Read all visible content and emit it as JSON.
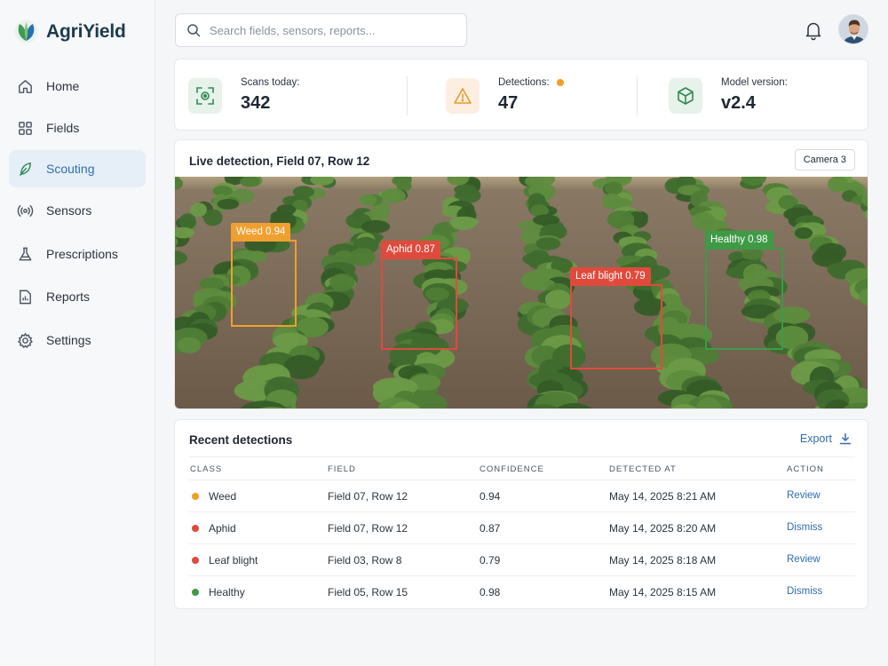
{
  "app": {
    "name": "AgriYield"
  },
  "sidebar": {
    "items": [
      {
        "label": "Home",
        "icon": "home-icon",
        "active": false
      },
      {
        "label": "Fields",
        "icon": "grid-icon",
        "active": false
      },
      {
        "label": "Scouting",
        "icon": "leaf-icon",
        "active": true
      },
      {
        "label": "Sensors",
        "icon": "signal-icon",
        "active": false
      },
      {
        "label": "Prescriptions",
        "icon": "flask-icon",
        "active": false
      },
      {
        "label": "Reports",
        "icon": "report-icon",
        "active": false
      },
      {
        "label": "Settings",
        "icon": "gear-icon",
        "active": false
      }
    ]
  },
  "header": {
    "search_placeholder": "Search fields, sensors, reports..."
  },
  "stats": {
    "scans": {
      "label": "Scans today:",
      "value": "342",
      "icon": "scan-icon"
    },
    "detections": {
      "label": "Detections:",
      "value": "47",
      "icon": "warning-icon",
      "indicator_color": "#f0a020"
    },
    "model": {
      "label": "Model version:",
      "value": "v2.4",
      "icon": "cube-icon"
    }
  },
  "live": {
    "title": "Live detection, Field 07, Row 12",
    "camera": "Camera 3",
    "boxes": [
      {
        "label": "Weed 0.94",
        "color": "#f0a030"
      },
      {
        "label": "Aphid 0.87",
        "color": "#e04a3c"
      },
      {
        "label": "Leaf blight 0.79",
        "color": "#e04a3c"
      },
      {
        "label": "Healthy 0.98",
        "color": "#3f9a46"
      }
    ]
  },
  "recent": {
    "title": "Recent detections",
    "export_label": "Export",
    "columns": [
      "CLASS",
      "FIELD",
      "CONFIDENCE",
      "DETECTED AT",
      "ACTION"
    ],
    "rows": [
      {
        "class": "Weed",
        "color": "#f0a020",
        "field": "Field 07, Row 12",
        "confidence": "0.94",
        "detected_at": "May 14, 2025 8:21 AM",
        "action": "Review"
      },
      {
        "class": "Aphid",
        "color": "#e04a3c",
        "field": "Field 07, Row 12",
        "confidence": "0.87",
        "detected_at": "May 14, 2025 8:20 AM",
        "action": "Dismiss"
      },
      {
        "class": "Leaf blight",
        "color": "#e04a3c",
        "field": "Field 03, Row 8",
        "confidence": "0.79",
        "detected_at": "May 14, 2025 8:18 AM",
        "action": "Review"
      },
      {
        "class": "Healthy",
        "color": "#3f9a46",
        "field": "Field 05, Row 15",
        "confidence": "0.98",
        "detected_at": "May 14, 2025 8:15 AM",
        "action": "Dismiss"
      }
    ]
  }
}
